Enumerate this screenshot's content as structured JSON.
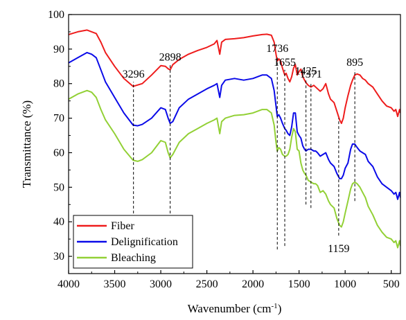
{
  "chart_data": {
    "type": "line",
    "xlabel": "Wavenumber (cm",
    "xlabel_sup": "-1",
    "xlabel_suffix": ")",
    "ylabel": "Transmittance (%)",
    "xlim": [
      4000,
      400
    ],
    "ylim": [
      25,
      100
    ],
    "x_ticks": [
      4000,
      3500,
      3000,
      2500,
      2000,
      1500,
      1000,
      500
    ],
    "y_ticks": [
      30,
      40,
      50,
      60,
      70,
      80,
      90,
      100
    ],
    "legend_position": "bottom-left",
    "series": [
      {
        "name": "Fiber",
        "color": "#ee1c1c",
        "points": [
          [
            4000,
            94.2
          ],
          [
            3900,
            95
          ],
          [
            3800,
            95.5
          ],
          [
            3700,
            94.5
          ],
          [
            3650,
            92
          ],
          [
            3600,
            89
          ],
          [
            3500,
            85
          ],
          [
            3400,
            81.5
          ],
          [
            3300,
            79.2
          ],
          [
            3200,
            80
          ],
          [
            3100,
            82.5
          ],
          [
            3000,
            85.2
          ],
          [
            2950,
            85
          ],
          [
            2920,
            84.3
          ],
          [
            2898,
            84
          ],
          [
            2870,
            85.5
          ],
          [
            2800,
            87
          ],
          [
            2700,
            88.5
          ],
          [
            2600,
            89.6
          ],
          [
            2500,
            90.5
          ],
          [
            2420,
            91.5
          ],
          [
            2390,
            92.5
          ],
          [
            2360,
            88.5
          ],
          [
            2340,
            92
          ],
          [
            2300,
            92.8
          ],
          [
            2200,
            93
          ],
          [
            2100,
            93.3
          ],
          [
            2000,
            93.8
          ],
          [
            1900,
            94.2
          ],
          [
            1850,
            94.3
          ],
          [
            1800,
            94
          ],
          [
            1770,
            92
          ],
          [
            1750,
            88.5
          ],
          [
            1736,
            86.5
          ],
          [
            1720,
            87.2
          ],
          [
            1700,
            86.5
          ],
          [
            1680,
            84.5
          ],
          [
            1655,
            82.5
          ],
          [
            1640,
            83
          ],
          [
            1620,
            81.5
          ],
          [
            1600,
            80.5
          ],
          [
            1580,
            82
          ],
          [
            1560,
            84.5
          ],
          [
            1540,
            85.5
          ],
          [
            1520,
            82.5
          ],
          [
            1500,
            83.5
          ],
          [
            1480,
            84.2
          ],
          [
            1460,
            82
          ],
          [
            1440,
            81
          ],
          [
            1425,
            80.3
          ],
          [
            1400,
            79.5
          ],
          [
            1371,
            79
          ],
          [
            1340,
            79.5
          ],
          [
            1320,
            79
          ],
          [
            1300,
            78.5
          ],
          [
            1270,
            77.8
          ],
          [
            1240,
            78.5
          ],
          [
            1210,
            80
          ],
          [
            1180,
            77
          ],
          [
            1159,
            75.5
          ],
          [
            1120,
            74.5
          ],
          [
            1090,
            72
          ],
          [
            1060,
            69.5
          ],
          [
            1040,
            68.5
          ],
          [
            1020,
            70
          ],
          [
            1000,
            73
          ],
          [
            970,
            76.5
          ],
          [
            940,
            79.5
          ],
          [
            920,
            81
          ],
          [
            895,
            82.5
          ],
          [
            870,
            82.8
          ],
          [
            840,
            82.5
          ],
          [
            810,
            81.5
          ],
          [
            780,
            81
          ],
          [
            750,
            80
          ],
          [
            700,
            79
          ],
          [
            650,
            77
          ],
          [
            600,
            75
          ],
          [
            550,
            73.5
          ],
          [
            500,
            73
          ],
          [
            470,
            72
          ],
          [
            450,
            72.5
          ],
          [
            430,
            70.5
          ],
          [
            410,
            72.5
          ],
          [
            400,
            71.5
          ]
        ]
      },
      {
        "name": "Delignification",
        "color": "#0a0ae8",
        "points": [
          [
            4000,
            86
          ],
          [
            3900,
            87.5
          ],
          [
            3800,
            89
          ],
          [
            3750,
            88.5
          ],
          [
            3700,
            87.5
          ],
          [
            3650,
            84
          ],
          [
            3600,
            80.5
          ],
          [
            3500,
            76
          ],
          [
            3400,
            71.5
          ],
          [
            3300,
            68
          ],
          [
            3250,
            67.8
          ],
          [
            3200,
            68.2
          ],
          [
            3100,
            70
          ],
          [
            3000,
            73
          ],
          [
            2950,
            72.5
          ],
          [
            2920,
            70
          ],
          [
            2898,
            68.5
          ],
          [
            2870,
            69
          ],
          [
            2800,
            73
          ],
          [
            2700,
            75.5
          ],
          [
            2600,
            77
          ],
          [
            2500,
            78.5
          ],
          [
            2420,
            79.5
          ],
          [
            2390,
            80
          ],
          [
            2360,
            76
          ],
          [
            2340,
            79.5
          ],
          [
            2300,
            81
          ],
          [
            2200,
            81.5
          ],
          [
            2100,
            81
          ],
          [
            2000,
            81.5
          ],
          [
            1900,
            82.5
          ],
          [
            1850,
            82.5
          ],
          [
            1800,
            81.5
          ],
          [
            1770,
            78
          ],
          [
            1750,
            73.5
          ],
          [
            1736,
            70.5
          ],
          [
            1720,
            71
          ],
          [
            1700,
            70
          ],
          [
            1680,
            68.5
          ],
          [
            1655,
            67
          ],
          [
            1640,
            66.5
          ],
          [
            1620,
            65.5
          ],
          [
            1600,
            65
          ],
          [
            1580,
            67.5
          ],
          [
            1560,
            71.5
          ],
          [
            1540,
            71.5
          ],
          [
            1520,
            66
          ],
          [
            1500,
            65
          ],
          [
            1480,
            64.2
          ],
          [
            1460,
            62
          ],
          [
            1440,
            61
          ],
          [
            1425,
            60.5
          ],
          [
            1400,
            61
          ],
          [
            1371,
            61
          ],
          [
            1340,
            60.5
          ],
          [
            1320,
            60.5
          ],
          [
            1300,
            60
          ],
          [
            1270,
            59
          ],
          [
            1240,
            59.5
          ],
          [
            1210,
            60
          ],
          [
            1180,
            58
          ],
          [
            1159,
            57
          ],
          [
            1120,
            56
          ],
          [
            1090,
            54
          ],
          [
            1060,
            52.5
          ],
          [
            1040,
            52.5
          ],
          [
            1020,
            53.5
          ],
          [
            1000,
            55.5
          ],
          [
            970,
            57
          ],
          [
            940,
            61
          ],
          [
            920,
            62.5
          ],
          [
            895,
            62.5
          ],
          [
            870,
            61.5
          ],
          [
            840,
            60.5
          ],
          [
            810,
            60
          ],
          [
            780,
            59.5
          ],
          [
            750,
            57.5
          ],
          [
            700,
            56
          ],
          [
            650,
            53
          ],
          [
            600,
            51
          ],
          [
            550,
            50
          ],
          [
            500,
            49
          ],
          [
            470,
            48
          ],
          [
            450,
            48.5
          ],
          [
            430,
            46.5
          ],
          [
            410,
            48.5
          ],
          [
            400,
            47
          ]
        ]
      },
      {
        "name": "Bleaching",
        "color": "#92d035",
        "points": [
          [
            4000,
            75.5
          ],
          [
            3900,
            77
          ],
          [
            3800,
            78
          ],
          [
            3750,
            77.5
          ],
          [
            3700,
            76
          ],
          [
            3650,
            72.5
          ],
          [
            3600,
            69.5
          ],
          [
            3500,
            65.5
          ],
          [
            3400,
            61
          ],
          [
            3300,
            57.8
          ],
          [
            3250,
            57.5
          ],
          [
            3200,
            58
          ],
          [
            3100,
            60
          ],
          [
            3000,
            63.5
          ],
          [
            2950,
            63
          ],
          [
            2920,
            60
          ],
          [
            2898,
            58.5
          ],
          [
            2870,
            59.5
          ],
          [
            2800,
            63
          ],
          [
            2700,
            65.5
          ],
          [
            2600,
            67
          ],
          [
            2500,
            68.5
          ],
          [
            2420,
            69.5
          ],
          [
            2390,
            70
          ],
          [
            2360,
            65.5
          ],
          [
            2340,
            69
          ],
          [
            2300,
            70
          ],
          [
            2200,
            70.8
          ],
          [
            2100,
            71
          ],
          [
            2000,
            71.5
          ],
          [
            1900,
            72.5
          ],
          [
            1850,
            72.5
          ],
          [
            1800,
            71.5
          ],
          [
            1770,
            68
          ],
          [
            1750,
            63
          ],
          [
            1736,
            60.5
          ],
          [
            1720,
            61.5
          ],
          [
            1700,
            61
          ],
          [
            1680,
            59.5
          ],
          [
            1655,
            59
          ],
          [
            1640,
            59
          ],
          [
            1620,
            59.5
          ],
          [
            1600,
            61
          ],
          [
            1580,
            64.5
          ],
          [
            1560,
            67
          ],
          [
            1540,
            66
          ],
          [
            1520,
            61
          ],
          [
            1500,
            60.5
          ],
          [
            1480,
            57
          ],
          [
            1460,
            55
          ],
          [
            1440,
            54
          ],
          [
            1425,
            53.5
          ],
          [
            1400,
            52
          ],
          [
            1371,
            51.5
          ],
          [
            1340,
            51
          ],
          [
            1320,
            51
          ],
          [
            1300,
            50.5
          ],
          [
            1270,
            48.5
          ],
          [
            1240,
            49
          ],
          [
            1210,
            48
          ],
          [
            1180,
            46
          ],
          [
            1159,
            45
          ],
          [
            1120,
            44
          ],
          [
            1090,
            41
          ],
          [
            1060,
            39
          ],
          [
            1040,
            38.5
          ],
          [
            1020,
            40
          ],
          [
            1000,
            42.5
          ],
          [
            970,
            46
          ],
          [
            940,
            49.5
          ],
          [
            920,
            51
          ],
          [
            895,
            51.5
          ],
          [
            870,
            51
          ],
          [
            840,
            50
          ],
          [
            810,
            48.5
          ],
          [
            780,
            47
          ],
          [
            750,
            44.5
          ],
          [
            700,
            42
          ],
          [
            650,
            39
          ],
          [
            600,
            37
          ],
          [
            550,
            35.5
          ],
          [
            500,
            35
          ],
          [
            470,
            34
          ],
          [
            450,
            34.5
          ],
          [
            430,
            32.5
          ],
          [
            410,
            34.5
          ],
          [
            400,
            33
          ]
        ]
      }
    ],
    "annotations": [
      {
        "label": "3296",
        "x": 3296,
        "line_from": 34,
        "line_to": 80.5
      },
      {
        "label": "2898",
        "x": 2898,
        "line_from": 34,
        "line_to": 85.5
      },
      {
        "label": "1736",
        "x": 1736,
        "line_from": 32,
        "line_to": 88
      },
      {
        "label": "1655",
        "x": 1655,
        "line_from": 33,
        "line_to": 84
      },
      {
        "label": "1425",
        "x": 1425,
        "line_from": 45,
        "line_to": 81.5
      },
      {
        "label": "1371",
        "x": 1371,
        "line_from": 44,
        "line_to": 80.5
      },
      {
        "label": "895",
        "x": 895,
        "line_from": 46,
        "line_to": 84
      },
      {
        "label": "1159",
        "x": 1070,
        "line_from": 36,
        "line_to": 70
      }
    ]
  }
}
